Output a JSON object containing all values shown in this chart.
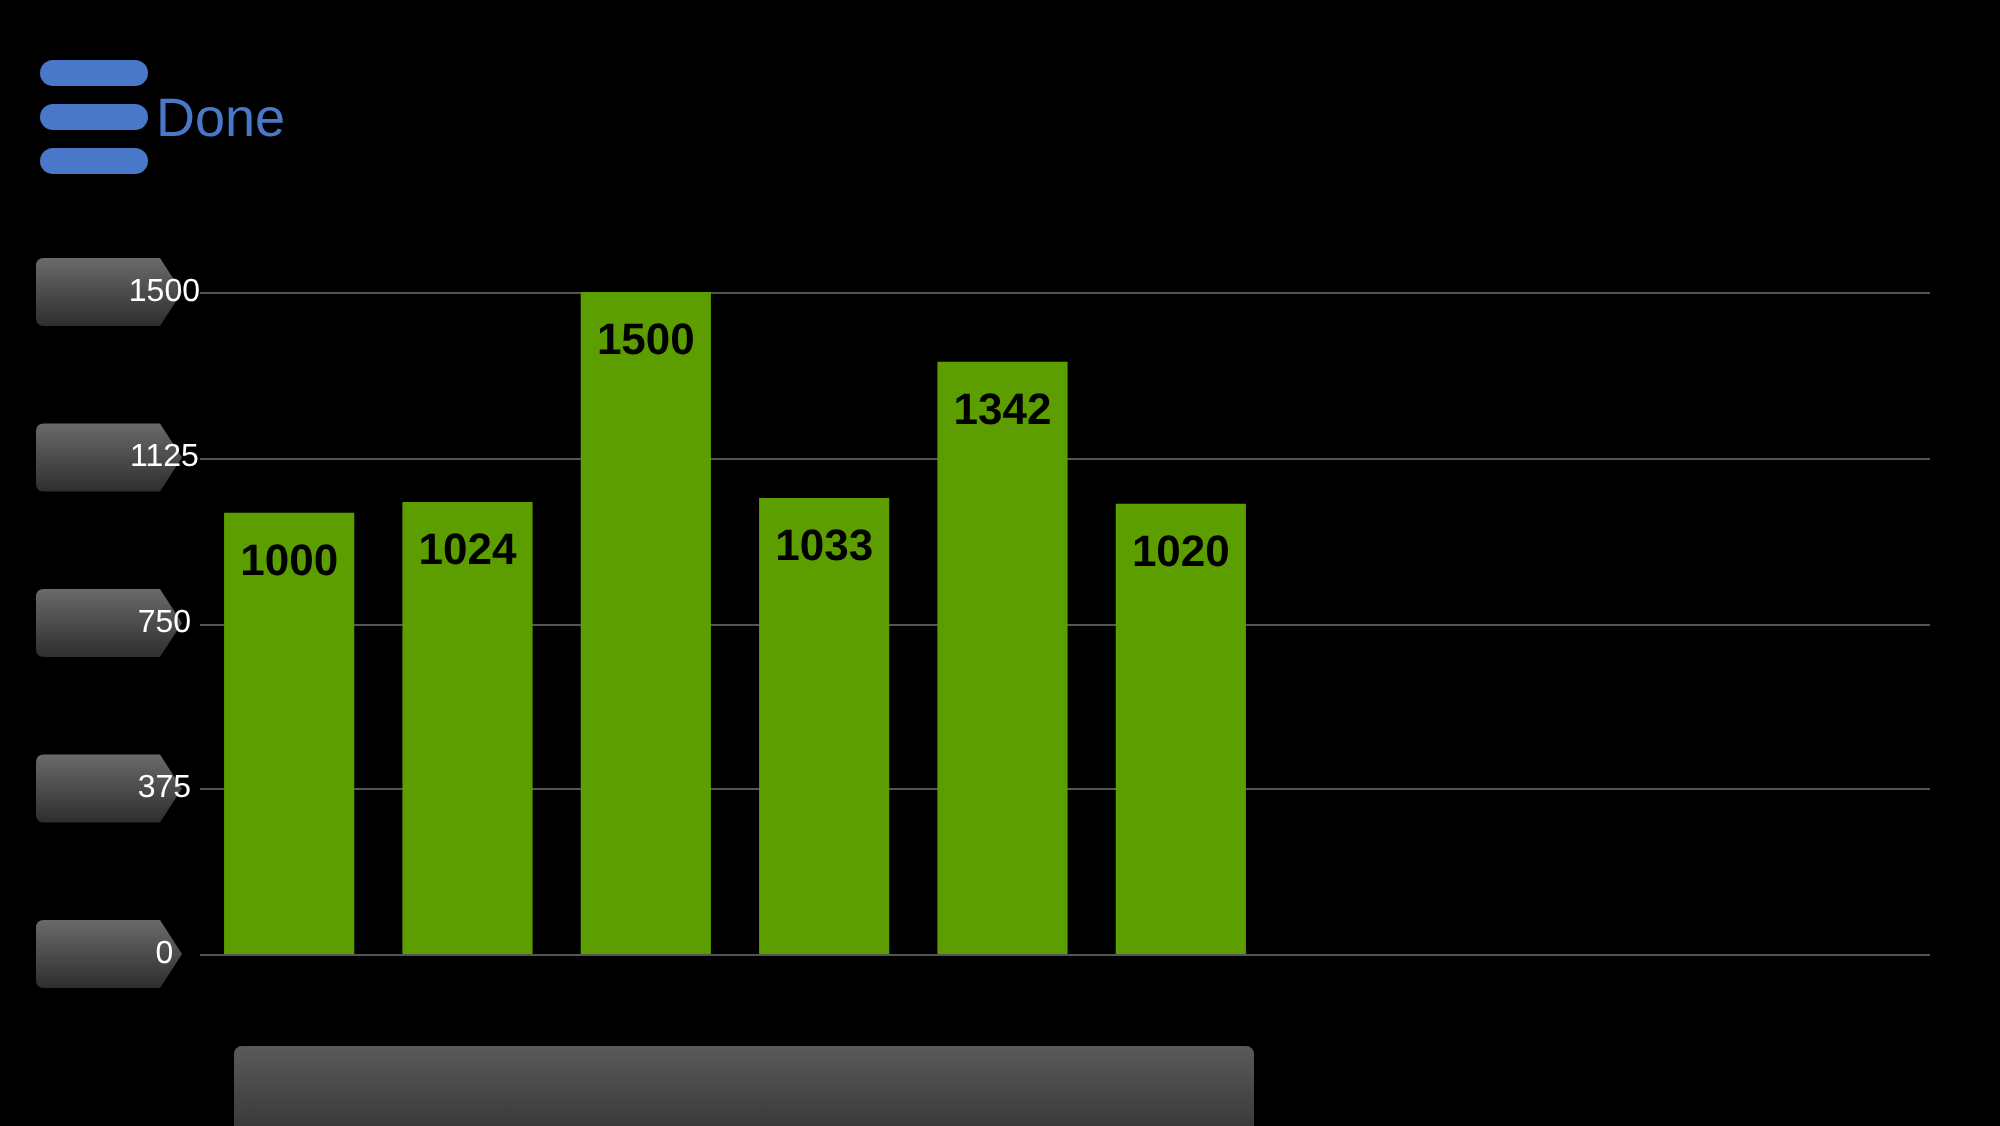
{
  "chart_data": {
    "type": "bar",
    "categories": [
      null,
      null,
      null,
      null,
      null,
      null
    ],
    "values": [
      1000,
      1024,
      1500,
      1033,
      1342,
      1020
    ],
    "color": "#5c9e00",
    "ylim": [
      0,
      1500
    ],
    "yticks": [
      0,
      375,
      750,
      1125,
      1500
    ],
    "grid": "y",
    "legend": false,
    "data_labels": true,
    "tick_labels": "y",
    "annotations": [
      "Done"
    ]
  }
}
